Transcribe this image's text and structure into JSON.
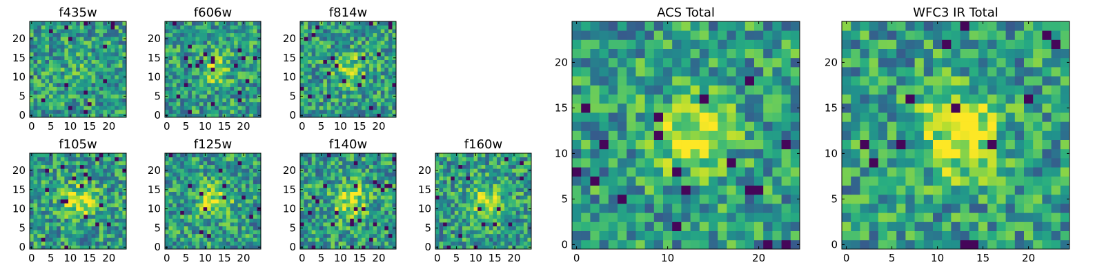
{
  "chart_data": [
    {
      "type": "heatmap",
      "title": "f435w",
      "xticks": [
        0,
        5,
        10,
        15,
        20
      ],
      "yticks": [
        0,
        5,
        10,
        15,
        20
      ],
      "xlim": [
        0,
        24
      ],
      "ylim": [
        0,
        24
      ],
      "colormap": "viridis",
      "seed": 11,
      "blob": 0.1
    },
    {
      "type": "heatmap",
      "title": "f606w",
      "xticks": [
        0,
        5,
        10,
        15,
        20
      ],
      "yticks": [
        0,
        5,
        10,
        15,
        20
      ],
      "xlim": [
        0,
        24
      ],
      "ylim": [
        0,
        24
      ],
      "colormap": "viridis",
      "seed": 23,
      "blob": 0.3
    },
    {
      "type": "heatmap",
      "title": "f814w",
      "xticks": [
        0,
        5,
        10,
        15,
        20
      ],
      "yticks": [
        0,
        5,
        10,
        15,
        20
      ],
      "xlim": [
        0,
        24
      ],
      "ylim": [
        0,
        24
      ],
      "colormap": "viridis",
      "seed": 37,
      "blob": 0.35
    },
    {
      "type": "heatmap",
      "title": "f105w",
      "xticks": [
        0,
        5,
        10,
        15,
        20
      ],
      "yticks": [
        0,
        5,
        10,
        15,
        20
      ],
      "xlim": [
        0,
        24
      ],
      "ylim": [
        0,
        24
      ],
      "colormap": "viridis",
      "seed": 41,
      "blob": 0.5
    },
    {
      "type": "heatmap",
      "title": "f125w",
      "xticks": [
        0,
        5,
        10,
        15,
        20
      ],
      "yticks": [
        0,
        5,
        10,
        15,
        20
      ],
      "xlim": [
        0,
        24
      ],
      "ylim": [
        0,
        24
      ],
      "colormap": "viridis",
      "seed": 53,
      "blob": 0.45
    },
    {
      "type": "heatmap",
      "title": "f140w",
      "xticks": [
        0,
        5,
        10,
        15,
        20
      ],
      "yticks": [
        0,
        5,
        10,
        15,
        20
      ],
      "xlim": [
        0,
        24
      ],
      "ylim": [
        0,
        24
      ],
      "colormap": "viridis",
      "seed": 67,
      "blob": 0.5
    },
    {
      "type": "heatmap",
      "title": "f160w",
      "xticks": [
        0,
        5,
        10,
        15,
        20
      ],
      "yticks": [
        0,
        5,
        10,
        15,
        20
      ],
      "xlim": [
        0,
        24
      ],
      "ylim": [
        0,
        24
      ],
      "colormap": "viridis",
      "seed": 79,
      "blob": 0.45
    },
    {
      "type": "heatmap",
      "title": "ACS Total",
      "xticks": [
        0,
        10,
        20
      ],
      "yticks": [
        0,
        5,
        10,
        15,
        20
      ],
      "xlim": [
        0,
        24
      ],
      "ylim": [
        0,
        24
      ],
      "colormap": "viridis",
      "seed": 83,
      "blob": 0.5
    },
    {
      "type": "heatmap",
      "title": "WFC3 IR Total",
      "xticks": [
        0,
        5,
        10,
        15,
        20
      ],
      "yticks": [
        0,
        5,
        10,
        15,
        20
      ],
      "xlim": [
        0,
        24
      ],
      "ylim": [
        0,
        24
      ],
      "colormap": "viridis",
      "seed": 97,
      "blob": 0.65
    }
  ]
}
